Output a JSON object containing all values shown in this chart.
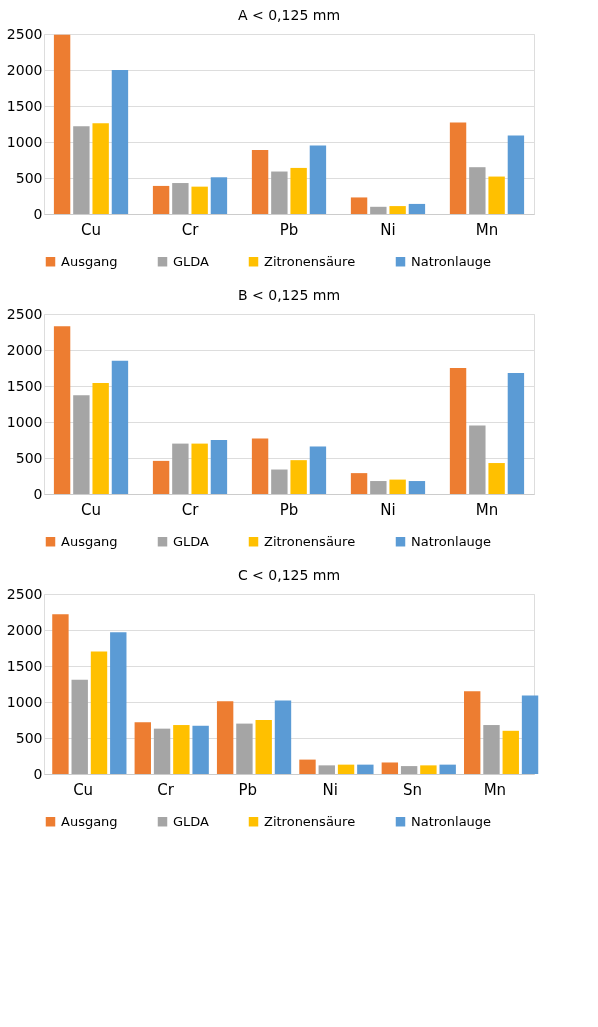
{
  "chart_data": [
    {
      "type": "bar",
      "title": "A  < 0,125 mm",
      "categories": [
        "Cu",
        "Cr",
        "Pb",
        "Ni",
        "Mn"
      ],
      "ylim": [
        0,
        2500
      ],
      "yticks": [
        0,
        500,
        1000,
        1500,
        2000,
        2500
      ],
      "grid": "y",
      "legend": "bottom",
      "series": [
        {
          "name": "Ausgang",
          "color": "#ed7d31",
          "values": [
            2490,
            390,
            890,
            230,
            1270
          ]
        },
        {
          "name": "GLDA",
          "color": "#a5a5a5",
          "values": [
            1220,
            430,
            590,
            100,
            650
          ]
        },
        {
          "name": "Zitronensäure",
          "color": "#ffc000",
          "values": [
            1260,
            380,
            640,
            110,
            520
          ]
        },
        {
          "name": "Natronlauge",
          "color": "#5b9bd5",
          "values": [
            2000,
            510,
            950,
            140,
            1090
          ]
        }
      ]
    },
    {
      "type": "bar",
      "title": "B < 0,125 mm",
      "categories": [
        "Cu",
        "Cr",
        "Pb",
        "Ni",
        "Mn"
      ],
      "ylim": [
        0,
        2500
      ],
      "yticks": [
        0,
        500,
        1000,
        1500,
        2000,
        2500
      ],
      "grid": "y",
      "legend": "bottom",
      "series": [
        {
          "name": "Ausgang",
          "color": "#ed7d31",
          "values": [
            2330,
            460,
            770,
            290,
            1750
          ]
        },
        {
          "name": "GLDA",
          "color": "#a5a5a5",
          "values": [
            1370,
            700,
            340,
            180,
            950
          ]
        },
        {
          "name": "Zitronensäure",
          "color": "#ffc000",
          "values": [
            1540,
            700,
            470,
            200,
            430
          ]
        },
        {
          "name": "Natronlauge",
          "color": "#5b9bd5",
          "values": [
            1850,
            750,
            660,
            180,
            1680
          ]
        }
      ]
    },
    {
      "type": "bar",
      "title": "C < 0,125 mm",
      "categories": [
        "Cu",
        "Cr",
        "Pb",
        "Ni",
        "Sn",
        "Mn"
      ],
      "ylim": [
        0,
        2500
      ],
      "yticks": [
        0,
        500,
        1000,
        1500,
        2000,
        2500
      ],
      "grid": "y",
      "legend": "bottom",
      "series": [
        {
          "name": "Ausgang",
          "color": "#ed7d31",
          "values": [
            2220,
            720,
            1010,
            200,
            160,
            1150
          ]
        },
        {
          "name": "GLDA",
          "color": "#a5a5a5",
          "values": [
            1310,
            630,
            700,
            120,
            110,
            680
          ]
        },
        {
          "name": "Zitronensäure",
          "color": "#ffc000",
          "values": [
            1700,
            680,
            750,
            130,
            120,
            600
          ]
        },
        {
          "name": "Natronlauge",
          "color": "#5b9bd5",
          "values": [
            1970,
            670,
            1020,
            130,
            130,
            1090
          ]
        }
      ]
    }
  ]
}
